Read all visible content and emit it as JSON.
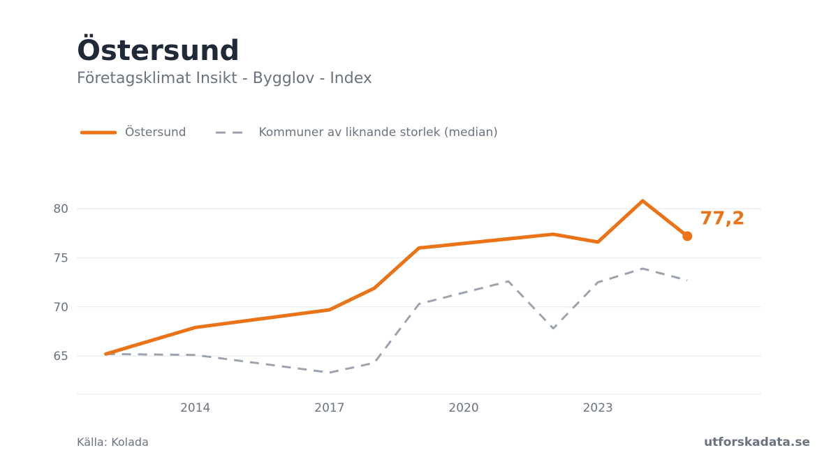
{
  "header": {
    "title": "Östersund",
    "subtitle": "Företagsklimat Insikt - Bygglov - Index"
  },
  "legend": {
    "items": [
      {
        "label": "Östersund",
        "color": "#ea7317",
        "style": "solid"
      },
      {
        "label": "Kommuner av liknande storlek (median)",
        "color": "#9ca3af",
        "style": "dashed"
      }
    ]
  },
  "footer": {
    "source": "Källa: Kolada",
    "brand": "utforskadata.se"
  },
  "chart_data": {
    "type": "line",
    "x": [
      2012,
      2014,
      2017,
      2018,
      2019,
      2022,
      2023,
      2024,
      2025
    ],
    "series": [
      {
        "name": "Östersund",
        "color": "#ea7317",
        "style": "solid",
        "values": [
          65.2,
          67.9,
          69.7,
          71.9,
          76.0,
          77.4,
          76.6,
          80.8,
          77.2
        ],
        "end_label": "77,2"
      },
      {
        "name": "Kommuner av liknande storlek (median)",
        "color": "#9ca3af",
        "style": "dashed",
        "x": [
          2012,
          2014,
          2017,
          2018,
          2019,
          2021,
          2022,
          2023,
          2024,
          2025
        ],
        "values": [
          65.2,
          65.1,
          63.3,
          64.3,
          70.3,
          72.6,
          67.8,
          72.5,
          73.9,
          72.7
        ]
      }
    ],
    "xticks": [
      2014,
      2017,
      2020,
      2023
    ],
    "xtick_labels": [
      "2014",
      "2017",
      "2020",
      "2023"
    ],
    "yticks": [
      65,
      70,
      75,
      80
    ],
    "ytick_labels": [
      "65",
      "70",
      "75",
      "80"
    ],
    "xlim": [
      2011.35,
      2026.65
    ],
    "ylim": [
      61.1,
      84.2
    ],
    "grid": true,
    "legend_position": "top-left"
  }
}
